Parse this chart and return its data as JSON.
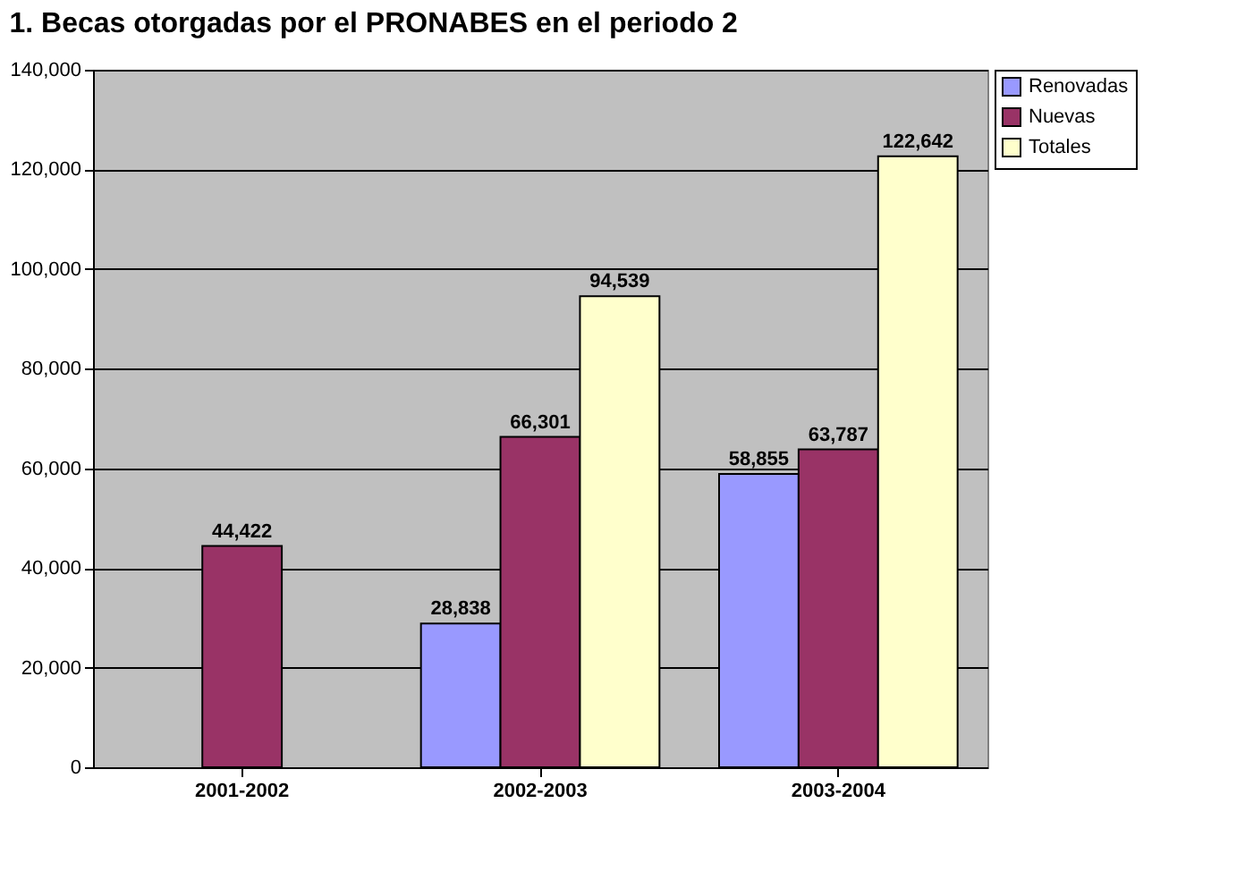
{
  "chart_data": {
    "type": "bar",
    "title": "1. Becas otorgadas por el PRONABES en el periodo 2",
    "categories": [
      "2001-2002",
      "2002-2003",
      "2003-2004"
    ],
    "series": [
      {
        "name": "Renovadas",
        "color": "#9999ff",
        "values": [
          null,
          28838,
          58855
        ],
        "value_labels": [
          null,
          "28,838",
          "58,855"
        ]
      },
      {
        "name": "Nuevas",
        "color": "#993366",
        "values": [
          44422,
          66301,
          63787
        ],
        "value_labels": [
          "44,422",
          "66,301",
          "63,787"
        ]
      },
      {
        "name": "Totales",
        "color": "#ffffcc",
        "values": [
          null,
          94539,
          122642
        ],
        "value_labels": [
          null,
          "94,539",
          "122,642"
        ]
      }
    ],
    "ylim": [
      0,
      140000
    ],
    "yticks": [
      0,
      {
        "value": 20000,
        "label": "20,000"
      },
      {
        "value": 40000,
        "label": "40,000"
      },
      {
        "value": 60000,
        "label": "60,000"
      },
      {
        "value": 80000,
        "label": "80,000"
      },
      {
        "value": 100000,
        "label": "100,000"
      },
      {
        "value": 120000,
        "label": "120,000"
      },
      {
        "value": 140000,
        "label": "140,000"
      }
    ],
    "grid": "y",
    "legend": "right"
  }
}
